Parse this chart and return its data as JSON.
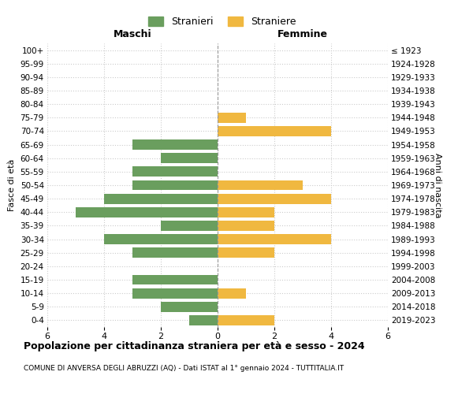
{
  "age_groups": [
    "0-4",
    "5-9",
    "10-14",
    "15-19",
    "20-24",
    "25-29",
    "30-34",
    "35-39",
    "40-44",
    "45-49",
    "50-54",
    "55-59",
    "60-64",
    "65-69",
    "70-74",
    "75-79",
    "80-84",
    "85-89",
    "90-94",
    "95-99",
    "100+"
  ],
  "birth_years": [
    "2019-2023",
    "2014-2018",
    "2009-2013",
    "2004-2008",
    "1999-2003",
    "1994-1998",
    "1989-1993",
    "1984-1988",
    "1979-1983",
    "1974-1978",
    "1969-1973",
    "1964-1968",
    "1959-1963",
    "1954-1958",
    "1949-1953",
    "1944-1948",
    "1939-1943",
    "1934-1938",
    "1929-1933",
    "1924-1928",
    "≤ 1923"
  ],
  "maschi_stranieri": [
    1,
    2,
    3,
    3,
    0,
    3,
    4,
    2,
    5,
    4,
    3,
    3,
    2,
    3,
    0,
    0,
    0,
    0,
    0,
    0,
    0
  ],
  "femmine_straniere": [
    2,
    0,
    1,
    0,
    0,
    2,
    4,
    2,
    2,
    4,
    3,
    0,
    0,
    0,
    4,
    1,
    0,
    0,
    0,
    0,
    0
  ],
  "color_maschi": "#6a9e5e",
  "color_femmine": "#f0b840",
  "xlim": 6,
  "title": "Popolazione per cittadinanza straniera per età e sesso - 2024",
  "subtitle": "COMUNE DI ANVERSA DEGLI ABRUZZI (AQ) - Dati ISTAT al 1° gennaio 2024 - TUTTITALIA.IT",
  "ylabel_left": "Fasce di età",
  "ylabel_right": "Anni di nascita",
  "xlabel_left_header": "Maschi",
  "xlabel_right_header": "Femmine",
  "legend_stranieri": "Stranieri",
  "legend_straniere": "Straniere",
  "bg_color": "#ffffff",
  "grid_color": "#cccccc"
}
